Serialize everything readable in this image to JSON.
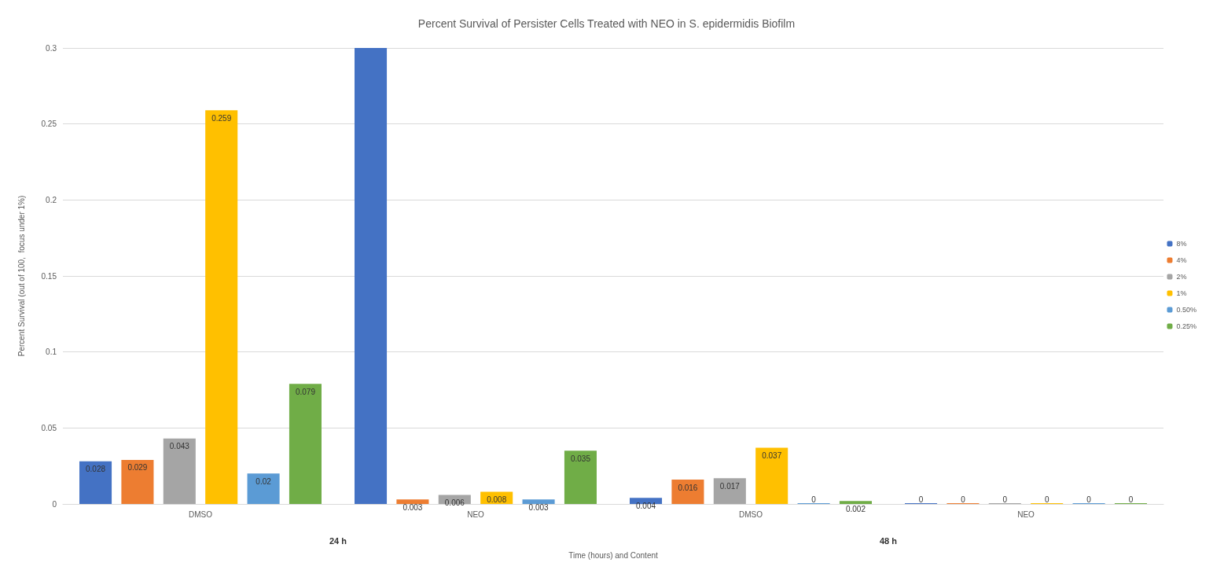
{
  "chart_data": {
    "type": "bar",
    "title": "Percent Survival of Persister Cells Treated with NEO in S. epidermidis Biofilm",
    "xlabel": "Time (hours) and Content",
    "ylabel": "Percent Survival (out of 100,  focus under 1%)",
    "categories": [
      "DMSO",
      "NEO",
      "DMSO",
      "NEO"
    ],
    "annotations": [
      "24 h",
      "48 h"
    ],
    "series": [
      {
        "name": "8%",
        "color": "#4472c4",
        "values": [
          0.028,
          0.3,
          0.004,
          0
        ],
        "value_labels": [
          "0.028",
          null,
          "0.004",
          "0"
        ]
      },
      {
        "name": "4%",
        "color": "#ed7d31",
        "values": [
          0.029,
          0.003,
          0.016,
          0
        ],
        "value_labels": [
          "0.029",
          "0.003",
          "0.016",
          "0"
        ]
      },
      {
        "name": "2%",
        "color": "#a5a5a5",
        "values": [
          0.043,
          0.006,
          0.017,
          0
        ],
        "value_labels": [
          "0.043",
          "0.006",
          "0.017",
          "0"
        ]
      },
      {
        "name": "1%",
        "color": "#ffc000",
        "values": [
          0.259,
          0.008,
          0.037,
          0
        ],
        "value_labels": [
          "0.259",
          "0.008",
          "0.037",
          "0"
        ]
      },
      {
        "name": "0.50%",
        "color": "#5b9bd5",
        "values": [
          0.02,
          0.003,
          0,
          0
        ],
        "value_labels": [
          "0.02",
          "0.003",
          "0",
          "0"
        ]
      },
      {
        "name": "0.25%",
        "color": "#70ad47",
        "values": [
          0.079,
          0.035,
          0.002,
          0
        ],
        "value_labels": [
          "0.079",
          "0.035",
          "0.002",
          "0"
        ]
      }
    ],
    "ylim": [
      0,
      0.3
    ],
    "yticks": [
      0,
      0.05,
      0.1,
      0.15,
      0.2,
      0.25,
      0.3
    ],
    "grid": "y",
    "legend": "right"
  }
}
